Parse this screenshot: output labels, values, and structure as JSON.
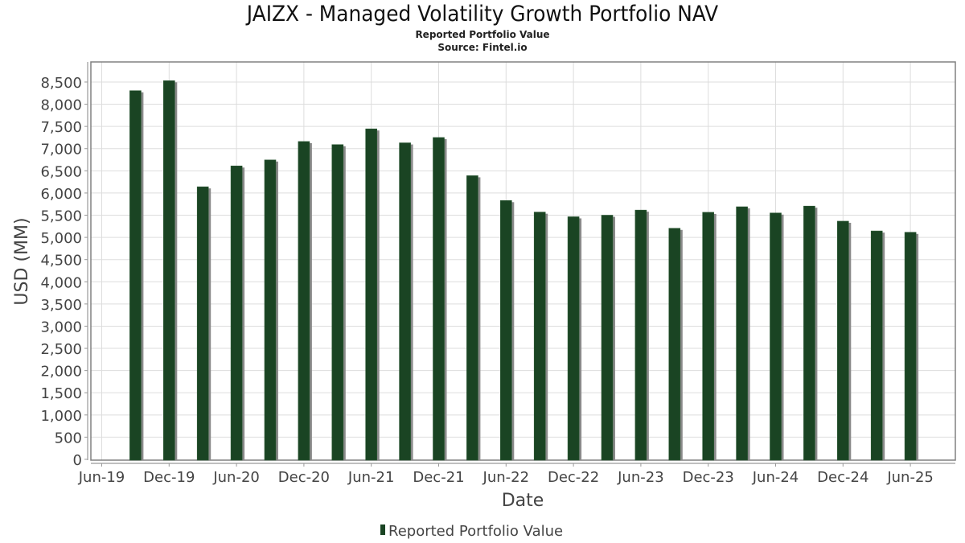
{
  "chart_data": {
    "type": "bar",
    "title": "JAIZX - Managed Volatility Growth Portfolio NAV",
    "subtitle": "Reported Portfolio Value",
    "source": "Source: Fintel.io",
    "xlabel": "Date",
    "ylabel": "USD (MM)",
    "ylim": [
      0,
      8900
    ],
    "yticks": [
      0,
      500,
      1000,
      1500,
      2000,
      2500,
      3000,
      3500,
      4000,
      4500,
      5000,
      5500,
      6000,
      6500,
      7000,
      7500,
      8000,
      8500
    ],
    "ytick_labels": [
      "0",
      "500",
      "1,000",
      "1,500",
      "2,000",
      "2,500",
      "3,000",
      "3,500",
      "4,000",
      "4,500",
      "5,000",
      "5,500",
      "6,000",
      "6,500",
      "7,000",
      "7,500",
      "8,000",
      "8,500"
    ],
    "xticks": [
      "Jun-19",
      "Dec-19",
      "Jun-20",
      "Dec-20",
      "Jun-21",
      "Dec-21",
      "Jun-22",
      "Dec-22",
      "Jun-23",
      "Dec-23",
      "Jun-24",
      "Dec-24",
      "Jun-25"
    ],
    "x_range_quarters": [
      "Jun-19",
      "Sep-25"
    ],
    "grid": true,
    "legend": {
      "position": "bottom-center",
      "entries": [
        "Reported Portfolio Value"
      ]
    },
    "categories": [
      "Sep-19",
      "Dec-19",
      "Mar-20",
      "Jun-20",
      "Sep-20",
      "Dec-20",
      "Mar-21",
      "Jun-21",
      "Sep-21",
      "Dec-21",
      "Mar-22",
      "Jun-22",
      "Sep-22",
      "Dec-22",
      "Mar-23",
      "Jun-23",
      "Sep-23",
      "Dec-23",
      "Mar-24",
      "Jun-24",
      "Sep-24",
      "Dec-24",
      "Mar-25",
      "Jun-25"
    ],
    "series": [
      {
        "name": "Reported Portfolio Value",
        "color": "#1a4423",
        "shadow_color": "#8a8a8a",
        "values": [
          8305,
          8530,
          6140,
          6610,
          6745,
          7160,
          7090,
          7445,
          7130,
          7250,
          6390,
          5830,
          5570,
          5465,
          5500,
          5615,
          5205,
          5565,
          5690,
          5550,
          5705,
          5365,
          5145,
          5115
        ]
      }
    ]
  }
}
